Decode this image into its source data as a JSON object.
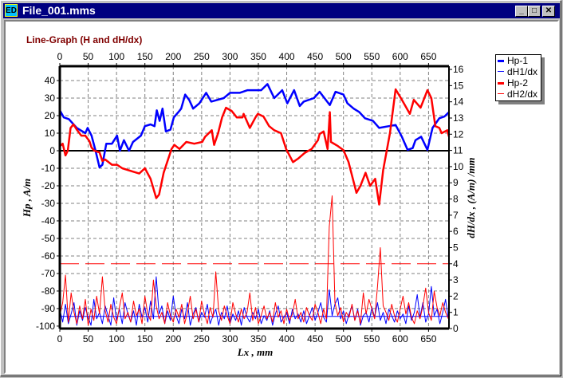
{
  "window": {
    "title": "File_001.mms",
    "icon": "ED",
    "controls": [
      "minimize",
      "maximize",
      "close"
    ]
  },
  "legend": [
    {
      "label": "Hp-1",
      "color": "#0000ff",
      "style": "thick"
    },
    {
      "label": "dH1/dx",
      "color": "#0000ff",
      "style": "thin"
    },
    {
      "label": "Hp-2",
      "color": "#ff0000",
      "style": "thick"
    },
    {
      "label": "dH2/dx",
      "color": "#ff0000",
      "style": "thin"
    }
  ],
  "chart_data": {
    "type": "line",
    "title": "Line-Graph  (H and dH/dx)",
    "xlabel": "Lx , mm",
    "ylabel": "Hp , A/m",
    "y2label": "dH/dx , (A/m) /mm",
    "xlim": [
      0,
      686
    ],
    "ylim": [
      -101.4,
      48.2
    ],
    "y2lim": [
      0,
      16.2
    ],
    "xticks": [
      0,
      50,
      100,
      150,
      200,
      250,
      300,
      350,
      400,
      450,
      500,
      550,
      600,
      650
    ],
    "yticks": [
      40,
      30,
      20,
      10,
      0,
      -10,
      -20,
      -30,
      -40,
      -50,
      -60,
      -70,
      -80,
      -90,
      -100
    ],
    "y2ticks": [
      16,
      15,
      14,
      13,
      12,
      11,
      10,
      9,
      8,
      7,
      6,
      5,
      4,
      3,
      2,
      1,
      0
    ],
    "grid": true,
    "legend_position": "top-right",
    "series": [
      {
        "name": "Hp-1",
        "axis": "left",
        "color": "#0000ff",
        "points": [
          [
            0,
            23
          ],
          [
            7,
            19
          ],
          [
            16,
            18
          ],
          [
            30,
            13
          ],
          [
            45,
            10
          ],
          [
            49,
            13
          ],
          [
            56,
            8.6
          ],
          [
            63,
            0
          ],
          [
            70,
            -9.5
          ],
          [
            75,
            -8
          ],
          [
            82,
            4
          ],
          [
            92,
            4
          ],
          [
            101,
            8.6
          ],
          [
            106,
            0
          ],
          [
            113,
            6
          ],
          [
            122,
            0
          ],
          [
            129,
            5
          ],
          [
            143,
            8.6
          ],
          [
            150,
            14
          ],
          [
            160,
            15
          ],
          [
            167,
            14
          ],
          [
            171,
            23
          ],
          [
            176,
            17
          ],
          [
            181,
            24
          ],
          [
            187,
            11
          ],
          [
            195,
            12
          ],
          [
            201,
            19
          ],
          [
            209,
            22
          ],
          [
            214,
            24
          ],
          [
            221,
            32
          ],
          [
            228,
            29
          ],
          [
            235,
            24
          ],
          [
            246,
            27
          ],
          [
            258,
            33
          ],
          [
            267,
            28
          ],
          [
            289,
            30
          ],
          [
            300,
            33
          ],
          [
            317,
            33
          ],
          [
            331,
            34.5
          ],
          [
            355,
            34.5
          ],
          [
            366,
            38
          ],
          [
            378,
            30
          ],
          [
            392,
            34.5
          ],
          [
            401,
            27
          ],
          [
            413,
            34.5
          ],
          [
            423,
            25.5
          ],
          [
            430,
            28
          ],
          [
            448,
            30
          ],
          [
            458,
            33.6
          ],
          [
            476,
            26
          ],
          [
            486,
            33.6
          ],
          [
            500,
            32
          ],
          [
            507,
            27
          ],
          [
            518,
            24
          ],
          [
            528,
            22
          ],
          [
            538,
            18.5
          ],
          [
            552,
            17
          ],
          [
            563,
            13
          ],
          [
            580,
            14
          ],
          [
            592,
            14.7
          ],
          [
            603,
            7.9
          ],
          [
            613,
            0.5
          ],
          [
            622,
            1.5
          ],
          [
            627,
            6
          ],
          [
            637,
            8
          ],
          [
            648,
            0.5
          ],
          [
            657,
            13
          ],
          [
            669,
            18.5
          ],
          [
            678,
            19.5
          ],
          [
            686,
            22
          ]
        ]
      },
      {
        "name": "Hp-2",
        "axis": "left",
        "color": "#ff0000",
        "points": [
          [
            0,
            2.5
          ],
          [
            5,
            4
          ],
          [
            10,
            -2.7
          ],
          [
            14,
            0
          ],
          [
            19,
            13
          ],
          [
            24,
            15
          ],
          [
            30,
            12
          ],
          [
            38,
            8.6
          ],
          [
            45,
            8.6
          ],
          [
            52,
            5.6
          ],
          [
            56,
            1.8
          ],
          [
            61,
            0
          ],
          [
            70,
            -1
          ],
          [
            75,
            -5.8
          ],
          [
            80,
            -5
          ],
          [
            92,
            -8
          ],
          [
            101,
            -8
          ],
          [
            110,
            -10
          ],
          [
            130,
            -12
          ],
          [
            140,
            -13
          ],
          [
            150,
            -10
          ],
          [
            160,
            -16
          ],
          [
            170,
            -27
          ],
          [
            175,
            -25
          ],
          [
            183,
            -12.6
          ],
          [
            197,
            1
          ],
          [
            202,
            3.3
          ],
          [
            211,
            1
          ],
          [
            223,
            5
          ],
          [
            237,
            4
          ],
          [
            251,
            5
          ],
          [
            256,
            7.9
          ],
          [
            268,
            11.7
          ],
          [
            272,
            3.3
          ],
          [
            279,
            10
          ],
          [
            286,
            19
          ],
          [
            293,
            24.5
          ],
          [
            303,
            22.7
          ],
          [
            312,
            19
          ],
          [
            322,
            19
          ],
          [
            324,
            21
          ],
          [
            335,
            13
          ],
          [
            345,
            19
          ],
          [
            349,
            21
          ],
          [
            359,
            19.5
          ],
          [
            369,
            14
          ],
          [
            378,
            11.7
          ],
          [
            390,
            10
          ],
          [
            399,
            1
          ],
          [
            411,
            -6.5
          ],
          [
            420,
            -4.5
          ],
          [
            432,
            -1.2
          ],
          [
            444,
            1
          ],
          [
            455,
            6
          ],
          [
            458,
            9.5
          ],
          [
            465,
            11
          ],
          [
            472,
            1
          ],
          [
            476,
            22
          ],
          [
            478,
            5
          ],
          [
            490,
            2.7
          ],
          [
            500,
            0.3
          ],
          [
            509,
            -6.5
          ],
          [
            523,
            -24
          ],
          [
            530,
            -20
          ],
          [
            539,
            -12.6
          ],
          [
            547,
            -20
          ],
          [
            556,
            -16
          ],
          [
            563,
            -30.7
          ],
          [
            570,
            -11
          ],
          [
            582,
            10
          ],
          [
            592,
            35
          ],
          [
            603,
            29
          ],
          [
            617,
            21
          ],
          [
            624,
            29
          ],
          [
            636,
            24.5
          ],
          [
            648,
            34.5
          ],
          [
            655,
            30
          ],
          [
            662,
            14
          ],
          [
            669,
            13
          ],
          [
            673,
            10
          ],
          [
            683,
            11.7
          ],
          [
            686,
            8
          ]
        ]
      },
      {
        "name": "dH1/dx",
        "axis": "right",
        "color": "#0000ff",
        "x_step": 5,
        "values": [
          1.2,
          0.4,
          1.5,
          0.3,
          0.9,
          1.6,
          0.2,
          1.1,
          0.5,
          1.3,
          0.7,
          0.2,
          1.8,
          0.6,
          1.0,
          0.3,
          1.4,
          0.8,
          0.2,
          1.9,
          0.5,
          1.2,
          0.3,
          1.6,
          0.9,
          0.4,
          1.1,
          0.2,
          1.5,
          0.7,
          1.3,
          0.4,
          1.7,
          0.6,
          3.2,
          0.9,
          1.4,
          0.3,
          1.1,
          0.5,
          2.0,
          0.8,
          0.3,
          1.2,
          0.6,
          1.6,
          0.2,
          0.9,
          1.3,
          0.4,
          1.0,
          0.7,
          1.5,
          0.3,
          0.8,
          1.2,
          0.2,
          1.0,
          0.6,
          1.4,
          0.3,
          0.9,
          0.5,
          1.1,
          0.2,
          1.3,
          0.7,
          0.4,
          1.0,
          0.6,
          1.2,
          0.3,
          0.8,
          0.5,
          1.1,
          0.2,
          0.9,
          1.4,
          0.4,
          0.7,
          1.0,
          0.3,
          1.2,
          0.6,
          0.9,
          0.4,
          1.1,
          0.3,
          0.8,
          1.3,
          0.5,
          1.0,
          1.6,
          0.7,
          0.4,
          2.4,
          0.8,
          1.5,
          1.9,
          0.6,
          1.1,
          0.3,
          0.9,
          1.4,
          0.5,
          1.2,
          0.2,
          0.8,
          1.0,
          0.4,
          1.3,
          0.7,
          1.6,
          0.5,
          1.0,
          0.3,
          1.2,
          0.8,
          0.4,
          1.1,
          0.6,
          0.9,
          0.3,
          1.4,
          0.5,
          1.0,
          2.1,
          0.7,
          1.6,
          0.4,
          0.9,
          2.6,
          0.8,
          1.2,
          0.3,
          1.0,
          1.8,
          0.6
        ]
      },
      {
        "name": "dH2/dx",
        "axis": "right",
        "color": "#ff0000",
        "x_step": 5,
        "values": [
          0.8,
          1.6,
          3.3,
          0.4,
          2.2,
          1.0,
          0.3,
          1.4,
          0.6,
          1.8,
          0.2,
          1.2,
          0.5,
          2.0,
          0.9,
          3.2,
          1.1,
          0.4,
          1.5,
          0.7,
          0.3,
          1.3,
          2.2,
          0.6,
          1.0,
          0.4,
          1.7,
          0.8,
          1.2,
          0.3,
          2.0,
          0.9,
          0.5,
          3.0,
          1.4,
          0.6,
          1.0,
          0.3,
          1.6,
          0.8,
          0.4,
          1.2,
          0.7,
          1.5,
          0.3,
          1.0,
          2.0,
          0.6,
          1.2,
          0.4,
          1.7,
          0.9,
          0.3,
          1.3,
          0.7,
          3.5,
          1.1,
          0.5,
          1.4,
          0.8,
          0.3,
          1.6,
          0.9,
          0.4,
          1.2,
          0.6,
          1.0,
          2.2,
          0.5,
          1.3,
          0.3,
          0.8,
          1.4,
          0.6,
          1.0,
          0.4,
          1.6,
          0.7,
          1.1,
          0.3,
          1.2,
          0.5,
          0.9,
          1.8,
          0.6,
          1.0,
          0.4,
          1.3,
          0.8,
          0.5,
          1.5,
          1.0,
          0.3,
          1.2,
          0.6,
          6.3,
          8.2,
          1.6,
          0.8,
          1.3,
          0.4,
          1.0,
          0.7,
          1.5,
          0.5,
          1.1,
          0.3,
          2.2,
          0.9,
          1.8,
          1.2,
          0.6,
          2.6,
          5.0,
          1.4,
          1.0,
          0.5,
          1.5,
          0.8,
          0.4,
          1.2,
          2.0,
          0.9,
          1.6,
          0.7,
          0.3,
          1.1,
          0.6,
          1.4,
          2.5,
          1.0,
          0.5,
          2.3,
          1.3,
          0.8,
          1.6,
          1.0,
          0.6
        ]
      }
    ],
    "thresholds": [
      {
        "axis": "right",
        "value": 0.75,
        "color": "#0000ff",
        "style": "solid"
      },
      {
        "axis": "right",
        "value": 4,
        "color": "#ff0000",
        "style": "long-dash"
      }
    ]
  }
}
